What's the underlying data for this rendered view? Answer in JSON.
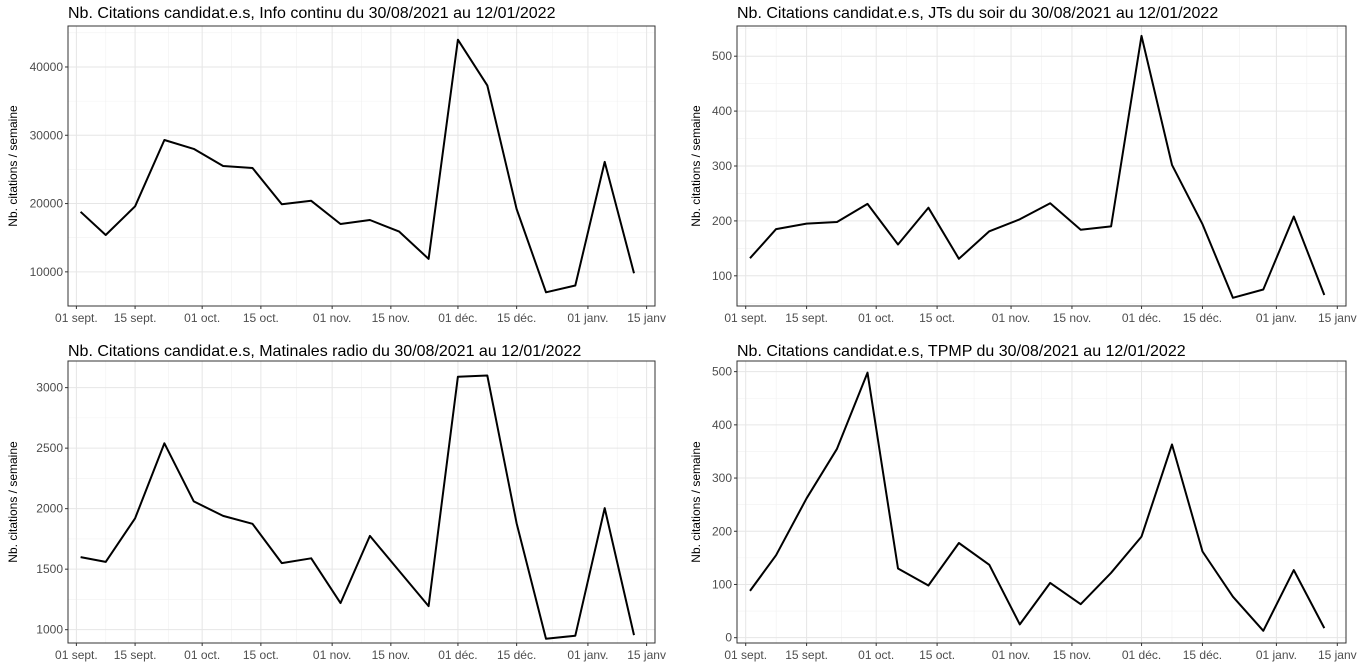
{
  "chart_data": [
    {
      "type": "line",
      "title": "Nb. Citations candidat.e.s, Info continu du 30/08/2021 au 12/01/2022",
      "ylabel": "Nb. citations / semaine",
      "xlabel": "",
      "xlim": [
        "2021-08-30",
        "2022-01-17"
      ],
      "ylim": [
        5000,
        46000
      ],
      "yticks": [
        10000,
        20000,
        30000,
        40000
      ],
      "xticks": [
        {
          "date": "2021-09-01",
          "label": "01 sept."
        },
        {
          "date": "2021-09-15",
          "label": "15 sept."
        },
        {
          "date": "2021-10-01",
          "label": "01 oct."
        },
        {
          "date": "2021-10-15",
          "label": "15 oct."
        },
        {
          "date": "2021-11-01",
          "label": "01 nov."
        },
        {
          "date": "2021-11-15",
          "label": "15 nov."
        },
        {
          "date": "2021-12-01",
          "label": "01 déc."
        },
        {
          "date": "2021-12-15",
          "label": "15 déc."
        },
        {
          "date": "2022-01-01",
          "label": "01 janv."
        },
        {
          "date": "2022-01-15",
          "label": "15 janv"
        }
      ],
      "grid": true,
      "series": [
        {
          "color": "#000000",
          "x": [
            "2021-09-02",
            "2021-09-08",
            "2021-09-15",
            "2021-09-22",
            "2021-09-29",
            "2021-10-06",
            "2021-10-13",
            "2021-10-20",
            "2021-10-27",
            "2021-11-03",
            "2021-11-10",
            "2021-11-17",
            "2021-11-24",
            "2021-12-01",
            "2021-12-08",
            "2021-12-15",
            "2021-12-22",
            "2021-12-29",
            "2022-01-05",
            "2022-01-12"
          ],
          "values": [
            18800,
            15400,
            19600,
            29300,
            28000,
            25500,
            25200,
            19900,
            20400,
            17000,
            17600,
            15900,
            11900,
            44000,
            37300,
            19200,
            7000,
            8000,
            26100,
            9800
          ]
        }
      ]
    },
    {
      "type": "line",
      "title": "Nb. Citations candidat.e.s, JTs du soir du 30/08/2021 au 12/01/2022",
      "ylabel": "Nb. citations / semaine",
      "xlabel": "",
      "xlim": [
        "2021-08-30",
        "2022-01-17"
      ],
      "ylim": [
        45,
        555
      ],
      "yticks": [
        100,
        200,
        300,
        400,
        500
      ],
      "xticks": [
        {
          "date": "2021-09-01",
          "label": "01 sept."
        },
        {
          "date": "2021-09-15",
          "label": "15 sept."
        },
        {
          "date": "2021-10-01",
          "label": "01 oct."
        },
        {
          "date": "2021-10-15",
          "label": "15 oct."
        },
        {
          "date": "2021-11-01",
          "label": "01 nov."
        },
        {
          "date": "2021-11-15",
          "label": "15 nov."
        },
        {
          "date": "2021-12-01",
          "label": "01 déc."
        },
        {
          "date": "2021-12-15",
          "label": "15 déc."
        },
        {
          "date": "2022-01-01",
          "label": "01 janv."
        },
        {
          "date": "2022-01-15",
          "label": "15 janv"
        }
      ],
      "grid": true,
      "series": [
        {
          "color": "#000000",
          "x": [
            "2021-09-02",
            "2021-09-08",
            "2021-09-15",
            "2021-09-22",
            "2021-09-29",
            "2021-10-06",
            "2021-10-13",
            "2021-10-20",
            "2021-10-27",
            "2021-11-03",
            "2021-11-10",
            "2021-11-17",
            "2021-11-24",
            "2021-12-01",
            "2021-12-08",
            "2021-12-15",
            "2021-12-22",
            "2021-12-29",
            "2022-01-05",
            "2022-01-12"
          ],
          "values": [
            132,
            185,
            195,
            198,
            231,
            157,
            224,
            131,
            181,
            203,
            232,
            184,
            190,
            537,
            302,
            194,
            60,
            75,
            208,
            65
          ]
        }
      ]
    },
    {
      "type": "line",
      "title": "Nb. Citations candidat.e.s, Matinales radio du 30/08/2021 au 12/01/2022",
      "ylabel": "Nb. citations / semaine",
      "xlabel": "",
      "xlim": [
        "2021-08-30",
        "2022-01-17"
      ],
      "ylim": [
        890,
        3220
      ],
      "yticks": [
        1000,
        1500,
        2000,
        2500,
        3000
      ],
      "xticks": [
        {
          "date": "2021-09-01",
          "label": "01 sept."
        },
        {
          "date": "2021-09-15",
          "label": "15 sept."
        },
        {
          "date": "2021-10-01",
          "label": "01 oct."
        },
        {
          "date": "2021-10-15",
          "label": "15 oct."
        },
        {
          "date": "2021-11-01",
          "label": "01 nov."
        },
        {
          "date": "2021-11-15",
          "label": "15 nov."
        },
        {
          "date": "2021-12-01",
          "label": "01 déc."
        },
        {
          "date": "2021-12-15",
          "label": "15 déc."
        },
        {
          "date": "2022-01-01",
          "label": "01 janv."
        },
        {
          "date": "2022-01-15",
          "label": "15 janv"
        }
      ],
      "grid": true,
      "series": [
        {
          "color": "#000000",
          "x": [
            "2021-09-02",
            "2021-09-08",
            "2021-09-15",
            "2021-09-22",
            "2021-09-29",
            "2021-10-06",
            "2021-10-13",
            "2021-10-20",
            "2021-10-27",
            "2021-11-03",
            "2021-11-10",
            "2021-11-17",
            "2021-11-24",
            "2021-12-01",
            "2021-12-08",
            "2021-12-15",
            "2021-12-22",
            "2021-12-29",
            "2022-01-05",
            "2022-01-12"
          ],
          "values": [
            1600,
            1560,
            1920,
            2540,
            2060,
            1940,
            1875,
            1550,
            1590,
            1220,
            1775,
            1485,
            1195,
            3090,
            3100,
            1880,
            925,
            950,
            2005,
            955
          ]
        }
      ]
    },
    {
      "type": "line",
      "title": "Nb. Citations candidat.e.s, TPMP du 30/08/2021 au 12/01/2022",
      "ylabel": "Nb. citations / semaine",
      "xlabel": "",
      "xlim": [
        "2021-08-30",
        "2022-01-17"
      ],
      "ylim": [
        -10,
        520
      ],
      "yticks": [
        0,
        100,
        200,
        300,
        400,
        500
      ],
      "xticks": [
        {
          "date": "2021-09-01",
          "label": "01 sept."
        },
        {
          "date": "2021-09-15",
          "label": "15 sept."
        },
        {
          "date": "2021-10-01",
          "label": "01 oct."
        },
        {
          "date": "2021-10-15",
          "label": "15 oct."
        },
        {
          "date": "2021-11-01",
          "label": "01 nov."
        },
        {
          "date": "2021-11-15",
          "label": "15 nov."
        },
        {
          "date": "2021-12-01",
          "label": "01 déc."
        },
        {
          "date": "2021-12-15",
          "label": "15 déc."
        },
        {
          "date": "2022-01-01",
          "label": "01 janv."
        },
        {
          "date": "2022-01-15",
          "label": "15 janv"
        }
      ],
      "grid": true,
      "series": [
        {
          "color": "#000000",
          "x": [
            "2021-09-02",
            "2021-09-08",
            "2021-09-15",
            "2021-09-22",
            "2021-09-29",
            "2021-10-06",
            "2021-10-13",
            "2021-10-20",
            "2021-10-27",
            "2021-11-03",
            "2021-11-10",
            "2021-11-17",
            "2021-11-24",
            "2021-12-01",
            "2021-12-08",
            "2021-12-15",
            "2021-12-22",
            "2021-12-29",
            "2022-01-05",
            "2022-01-12"
          ],
          "values": [
            88,
            155,
            262,
            355,
            498,
            130,
            98,
            178,
            137,
            25,
            103,
            63,
            122,
            190,
            363,
            162,
            77,
            13,
            127,
            18
          ]
        }
      ]
    }
  ]
}
